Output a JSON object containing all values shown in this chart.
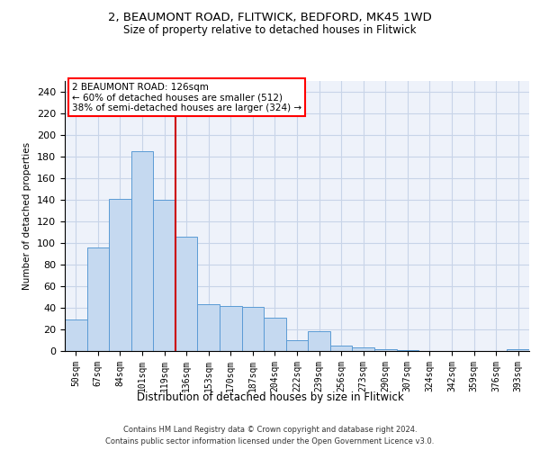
{
  "title_line1": "2, BEAUMONT ROAD, FLITWICK, BEDFORD, MK45 1WD",
  "title_line2": "Size of property relative to detached houses in Flitwick",
  "xlabel": "Distribution of detached houses by size in Flitwick",
  "ylabel": "Number of detached properties",
  "bar_labels": [
    "50sqm",
    "67sqm",
    "84sqm",
    "101sqm",
    "119sqm",
    "136sqm",
    "153sqm",
    "170sqm",
    "187sqm",
    "204sqm",
    "222sqm",
    "239sqm",
    "256sqm",
    "273sqm",
    "290sqm",
    "307sqm",
    "324sqm",
    "342sqm",
    "359sqm",
    "376sqm",
    "393sqm"
  ],
  "bar_values": [
    29,
    96,
    141,
    185,
    140,
    106,
    43,
    42,
    41,
    31,
    10,
    18,
    5,
    3,
    2,
    1,
    0,
    0,
    0,
    0,
    2
  ],
  "bar_color": "#c5d9f0",
  "bar_edge_color": "#5b9bd5",
  "grid_color": "#c8d4e8",
  "background_color": "#eef2fa",
  "annotation_box_text": "2 BEAUMONT ROAD: 126sqm\n← 60% of detached houses are smaller (512)\n38% of semi-detached houses are larger (324) →",
  "vline_x": 4.5,
  "vline_color": "#cc0000",
  "ylim": [
    0,
    250
  ],
  "yticks": [
    0,
    20,
    40,
    60,
    80,
    100,
    120,
    140,
    160,
    180,
    200,
    220,
    240
  ],
  "footer_line1": "Contains HM Land Registry data © Crown copyright and database right 2024.",
  "footer_line2": "Contains public sector information licensed under the Open Government Licence v3.0."
}
